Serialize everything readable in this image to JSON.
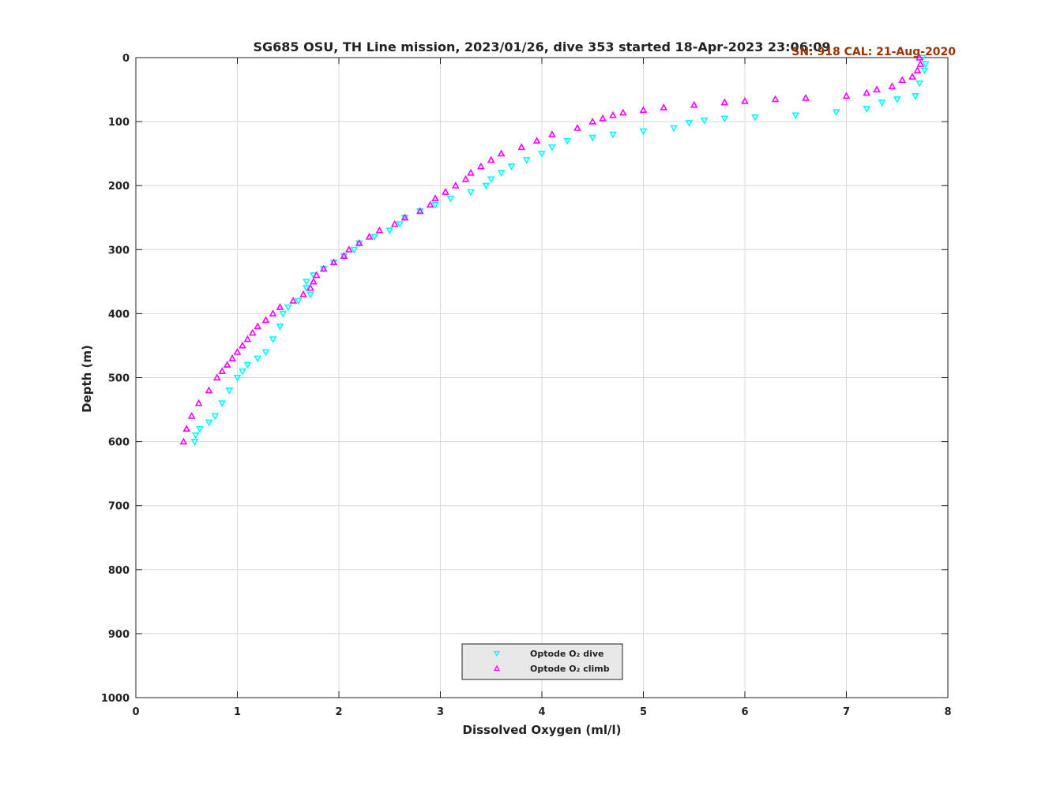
{
  "chart_data": {
    "type": "scatter",
    "title": "SG685 OSU, TH Line mission, 2023/01/26, dive 353 started 18-Apr-2023 23:06:09",
    "annotation": "SN: 918  CAL: 21-Aug-2020",
    "x_label": "Dissolved Oxygen (ml/l)",
    "y_label": "Depth (m)",
    "xlim": [
      0,
      8
    ],
    "xticks": [
      0,
      1,
      2,
      3,
      4,
      5,
      6,
      7,
      8
    ],
    "ylim": [
      0,
      1000
    ],
    "yticks": [
      0,
      100,
      200,
      300,
      400,
      500,
      600,
      700,
      800,
      900,
      1000
    ],
    "y_inverted": true,
    "grid": true,
    "legend": "bottom",
    "series": [
      {
        "name": "Optode O₂ dive",
        "color": "#00ffff",
        "marker": "triangle-down",
        "x": [
          7.75,
          7.78,
          7.77,
          7.72,
          7.68,
          7.5,
          7.35,
          7.2,
          6.9,
          6.5,
          6.1,
          5.8,
          5.6,
          5.45,
          5.3,
          5.0,
          4.7,
          4.5,
          4.25,
          4.1,
          4.0,
          3.85,
          3.7,
          3.6,
          3.5,
          3.45,
          3.3,
          3.1,
          2.95,
          2.8,
          2.65,
          2.6,
          2.5,
          2.35,
          2.2,
          2.15,
          2.05,
          1.95,
          1.85,
          1.75,
          1.68,
          1.68,
          1.72,
          1.6,
          1.5,
          1.45,
          1.42,
          1.35,
          1.28,
          1.2,
          1.1,
          1.05,
          1.0,
          0.92,
          0.85,
          0.78,
          0.72,
          0.63,
          0.59,
          0.58
        ],
        "values": [
          0,
          10,
          20,
          40,
          60,
          65,
          70,
          80,
          85,
          90,
          93,
          95,
          98,
          102,
          110,
          115,
          120,
          125,
          130,
          140,
          150,
          160,
          170,
          180,
          190,
          200,
          210,
          220,
          230,
          240,
          250,
          260,
          270,
          280,
          290,
          300,
          310,
          320,
          330,
          340,
          350,
          360,
          370,
          380,
          390,
          400,
          420,
          440,
          460,
          470,
          480,
          490,
          500,
          520,
          540,
          560,
          570,
          580,
          590,
          600
        ]
      },
      {
        "name": "Optode O₂ climb",
        "color": "#ff00ff",
        "marker": "triangle-up",
        "x": [
          7.72,
          7.73,
          7.7,
          7.65,
          7.55,
          7.45,
          7.3,
          7.2,
          7.0,
          6.6,
          6.3,
          6.0,
          5.8,
          5.5,
          5.2,
          5.0,
          4.8,
          4.7,
          4.6,
          4.5,
          4.35,
          4.1,
          3.95,
          3.8,
          3.6,
          3.5,
          3.4,
          3.3,
          3.25,
          3.15,
          3.05,
          2.95,
          2.9,
          2.8,
          2.65,
          2.55,
          2.4,
          2.3,
          2.2,
          2.1,
          2.05,
          1.95,
          1.85,
          1.78,
          1.75,
          1.72,
          1.65,
          1.55,
          1.42,
          1.35,
          1.28,
          1.2,
          1.15,
          1.1,
          1.05,
          1.0,
          0.95,
          0.9,
          0.85,
          0.8,
          0.72,
          0.62,
          0.55,
          0.5,
          0.47
        ],
        "values": [
          0,
          10,
          20,
          30,
          35,
          45,
          50,
          55,
          60,
          63,
          65,
          68,
          70,
          74,
          78,
          82,
          86,
          90,
          95,
          100,
          110,
          120,
          130,
          140,
          150,
          160,
          170,
          180,
          190,
          200,
          210,
          220,
          230,
          240,
          250,
          260,
          270,
          280,
          290,
          300,
          310,
          320,
          330,
          340,
          350,
          360,
          370,
          380,
          390,
          400,
          410,
          420,
          430,
          440,
          450,
          460,
          470,
          480,
          490,
          500,
          520,
          540,
          560,
          580,
          600
        ]
      }
    ]
  }
}
